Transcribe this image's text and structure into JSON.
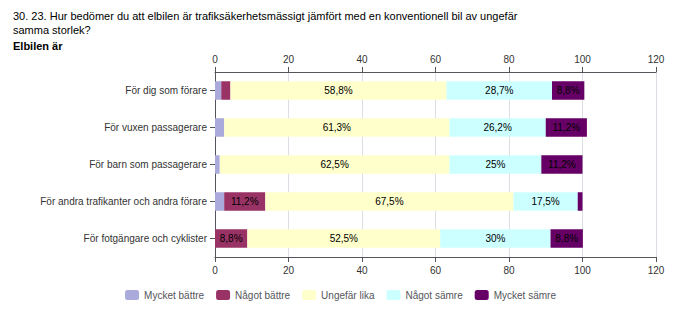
{
  "chart_data": {
    "type": "bar",
    "orientation": "horizontal",
    "stacked": true,
    "title": "30. 23. Hur bedömer du att elbilen är trafiksäkerhetsmässigt jämfört med en konventionell bil av ungefär\nsamma storlek?",
    "subtitle": "Elbilen är",
    "categories": [
      "För dig som förare",
      "För vuxen passagerare",
      "För barn som passagerare",
      "För andra trafikanter och andra förare",
      "För fotgängare och cyklister"
    ],
    "series": [
      {
        "name": "Mycket bättre",
        "color": "#aaaadd",
        "values": [
          1.7,
          2.5,
          1.3,
          2.5,
          0.0
        ],
        "value_labels": [
          null,
          null,
          null,
          null,
          null
        ]
      },
      {
        "name": "Något bättre",
        "color": "#993366",
        "values": [
          2.5,
          0.0,
          0.0,
          11.2,
          8.8
        ],
        "value_labels": [
          null,
          null,
          null,
          "11,2%",
          "8,8%"
        ]
      },
      {
        "name": "Ungefär lika",
        "color": "#ffffcc",
        "values": [
          58.8,
          61.3,
          62.5,
          67.5,
          52.5
        ],
        "value_labels": [
          "58,8%",
          "61,3%",
          "62,5%",
          "67,5%",
          "52,5%"
        ]
      },
      {
        "name": "Något sämre",
        "color": "#ccffff",
        "values": [
          28.7,
          26.2,
          25.0,
          17.5,
          30.0
        ],
        "value_labels": [
          "28,7%",
          "26,2%",
          "25%",
          "17,5%",
          "30%"
        ]
      },
      {
        "name": "Mycket sämre",
        "color": "#660066",
        "values": [
          8.8,
          11.2,
          11.2,
          1.3,
          8.8
        ],
        "value_labels": [
          "8,8%",
          "11,2%",
          "11,2%",
          null,
          "8,8%"
        ]
      }
    ],
    "xlim": [
      0,
      120
    ],
    "xticks": [
      0,
      20,
      40,
      60,
      80,
      100,
      120
    ],
    "grid": true,
    "legend": "bottom",
    "data_labels": true
  }
}
